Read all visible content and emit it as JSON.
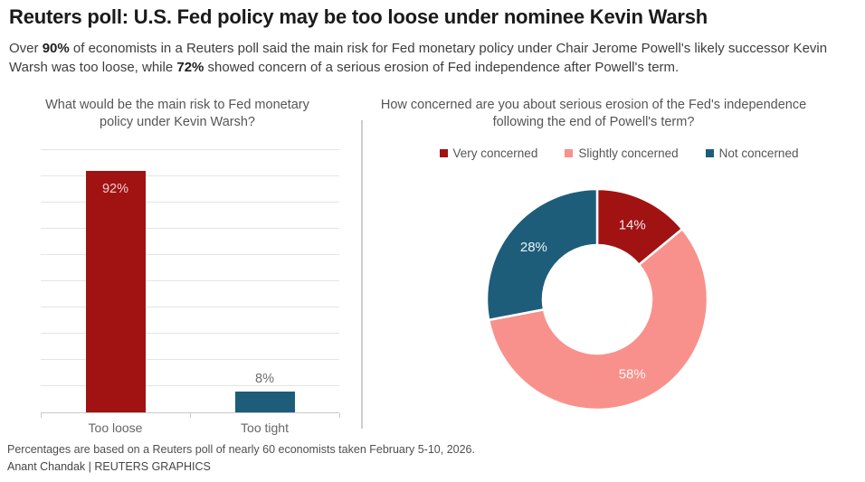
{
  "header": {
    "title": "Reuters poll: U.S. Fed policy may be too loose under nominee Kevin Warsh",
    "subtitle_parts": [
      {
        "text": "Over ",
        "bold": false
      },
      {
        "text": "90%",
        "bold": true
      },
      {
        "text": " of economists in a Reuters poll said the main risk for Fed monetary policy under Chair Jerome Powell's likely successor Kevin Warsh was too loose, while ",
        "bold": false
      },
      {
        "text": "72%",
        "bold": true
      },
      {
        "text": " showed concern of a serious erosion of Fed independence after Powell's term.",
        "bold": false
      }
    ]
  },
  "colors": {
    "dark_red": "#a11212",
    "pink": "#f8918c",
    "teal": "#1d5d7a",
    "gridline": "#e4e4e4",
    "axis": "#c9c9c9",
    "divider": "#cccccc",
    "inside_bar_label": "rgba(255,255,255,0.8)",
    "outside_bar_label": "#6e6e6e"
  },
  "chart_data": [
    {
      "type": "bar",
      "title": "What would be the main risk to Fed monetary policy under Kevin Warsh?",
      "title_lines": [
        "What would be the main risk to Fed monetary",
        "policy under Kevin Warsh?"
      ],
      "categories": [
        "Too loose",
        "Too tight"
      ],
      "values": [
        92,
        8
      ],
      "value_labels": [
        "92%",
        "8%"
      ],
      "bar_colors": [
        "#a11212",
        "#1d5d7a"
      ],
      "label_inside": [
        true,
        false
      ],
      "xlabel": "",
      "ylabel": "",
      "unit": "percent",
      "ylim": [
        0,
        100
      ],
      "grid": true,
      "gridline_step": 10,
      "y_tick_labels_shown": false
    },
    {
      "type": "pie",
      "donut": true,
      "title": "How concerned are you about serious erosion of the Fed's independence following the end of Powell's term?",
      "title_lines": [
        "How concerned are you about serious erosion of the Fed's independence",
        "following the end of Powell's term?"
      ],
      "legend_position": "top",
      "start_angle_deg": 0,
      "direction": "clockwise",
      "slices": [
        {
          "label": "Very concerned",
          "value": 14,
          "display": "14%",
          "color": "#a11212"
        },
        {
          "label": "Slightly concerned",
          "value": 58,
          "display": "58%",
          "color": "#f8918c"
        },
        {
          "label": "Not concerned",
          "value": 28,
          "display": "28%",
          "color": "#1d5d7a"
        }
      ]
    }
  ],
  "footer": {
    "note": "Percentages are based on a Reuters poll of nearly 60 economists taken February 5-10, 2026.",
    "byline": "Anant Chandak | REUTERS GRAPHICS"
  }
}
